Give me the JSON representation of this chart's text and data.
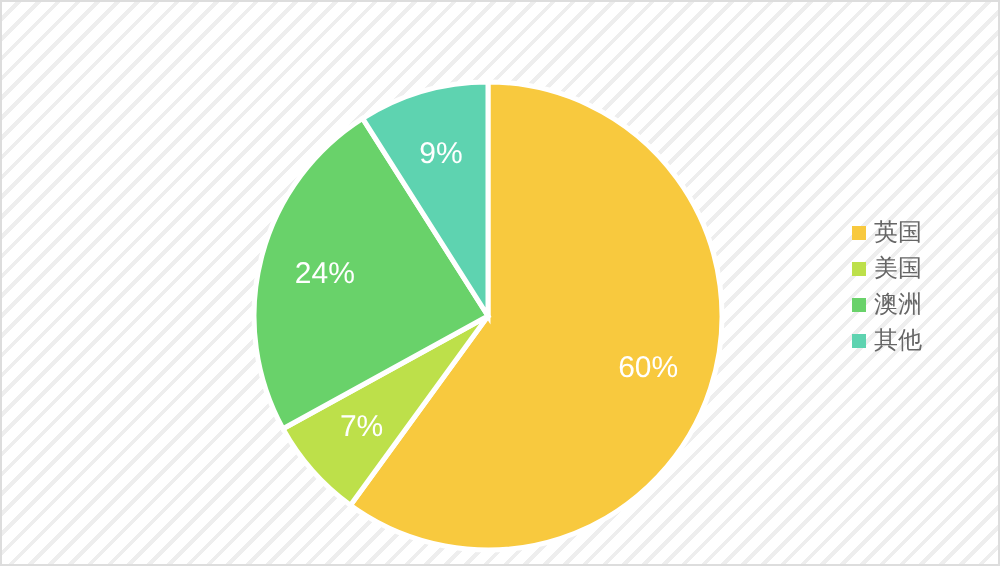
{
  "chart_data": {
    "type": "pie",
    "categories": [
      "英国",
      "美国",
      "澳洲",
      "其他"
    ],
    "values": [
      60,
      7,
      24,
      9
    ],
    "colors": [
      "#f8c93e",
      "#bde04a",
      "#69d26a",
      "#5ed3b0"
    ],
    "value_labels": [
      "60%",
      "7%",
      "24%",
      "9%"
    ],
    "legend": "right"
  }
}
